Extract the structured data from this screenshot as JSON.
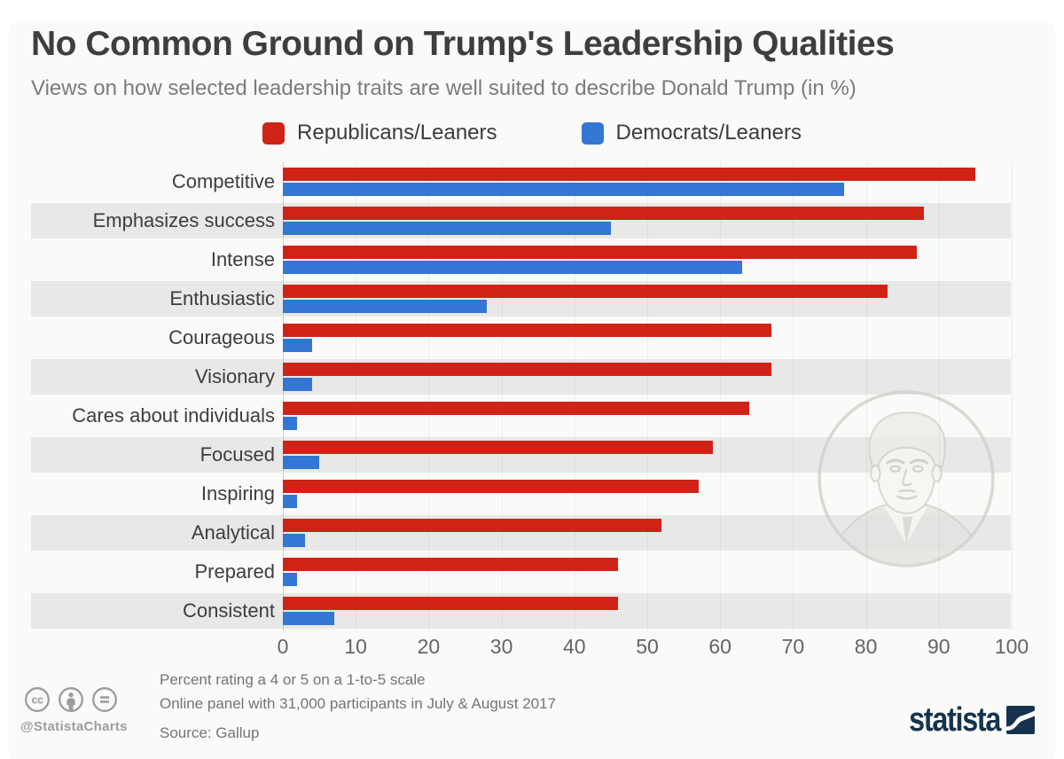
{
  "header": {
    "title": "No Common Ground on Trump's Leadership Qualities",
    "subtitle": "Views on how selected leadership traits are well suited to describe Donald Trump (in %)"
  },
  "legend": {
    "items": [
      {
        "label": "Republicans/Leaners",
        "color": "#d02318"
      },
      {
        "label": "Democrats/Leaners",
        "color": "#3376d4"
      }
    ]
  },
  "chart_data": {
    "type": "bar",
    "orientation": "horizontal",
    "title": "No Common Ground on Trump's Leadership Qualities",
    "subtitle": "Views on how selected leadership traits are well suited to describe Donald Trump (in %)",
    "categories": [
      "Competitive",
      "Emphasizes success",
      "Intense",
      "Enthusiastic",
      "Courageous",
      "Visionary",
      "Cares about individuals",
      "Focused",
      "Inspiring",
      "Analytical",
      "Prepared",
      "Consistent"
    ],
    "series": [
      {
        "name": "Republicans/Leaners",
        "color": "#d02318",
        "values": [
          95,
          88,
          87,
          83,
          67,
          67,
          64,
          59,
          57,
          52,
          46,
          46
        ]
      },
      {
        "name": "Democrats/Leaners",
        "color": "#3376d4",
        "values": [
          77,
          45,
          63,
          28,
          4,
          4,
          2,
          5,
          2,
          3,
          2,
          7
        ]
      }
    ],
    "xlabel": "",
    "ylabel": "",
    "xlim": [
      0,
      100
    ],
    "x_ticks": [
      0,
      10,
      20,
      30,
      40,
      50,
      60,
      70,
      80,
      90,
      100
    ],
    "grid": "vertical",
    "legend_position": "top",
    "row_striping": true
  },
  "colors": {
    "stripe": "#e8e8e7",
    "brand": "#16334d"
  },
  "footer": {
    "notes": [
      "Percent rating a 4 or 5 on a 1-to-5 scale",
      "Online panel with 31,000 participants in July & August 2017"
    ],
    "source": "Source: Gallup",
    "attribution": "@StatistaCharts",
    "license_icons": [
      "cc-icon",
      "attribution-person-icon",
      "no-derivatives-icon"
    ],
    "brand": "statista"
  }
}
